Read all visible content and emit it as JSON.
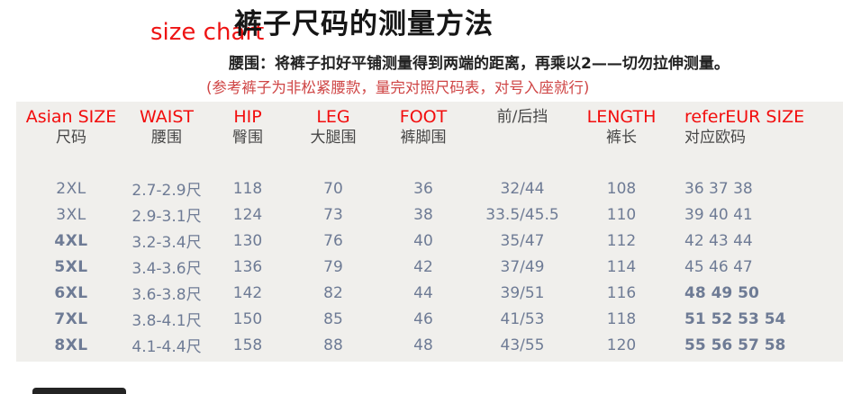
{
  "page": {
    "size_chart_label": "size chart",
    "title": "裤子尺码的测量方法",
    "instruction": "腰围：将裤子扣好平铺测量得到两端的距离，再乘以2——切勿拉伸测量。",
    "note": "(参考裤子为非松紧腰款，量完对照尺码表，对号入座就行)"
  },
  "colors": {
    "accent_red": "#f20d0d",
    "note_red": "#cf4545",
    "table_text": "#6e7b95",
    "panel_background": "#f0efec",
    "title_black": "#161616"
  },
  "table": {
    "columns": [
      {
        "en": "Asian SIZE",
        "cn": "尺码"
      },
      {
        "en": "WAIST",
        "cn": "腰围"
      },
      {
        "en": "HIP",
        "cn": "臀围"
      },
      {
        "en": "LEG",
        "cn": "大腿围"
      },
      {
        "en": "FOOT",
        "cn": "裤脚围"
      },
      {
        "en": "",
        "cn": "前/后挡"
      },
      {
        "en": "LENGTH",
        "cn": "裤长"
      },
      {
        "en": "referEUR SIZE",
        "cn": "对应欧码"
      }
    ],
    "rows": [
      {
        "cells": [
          "2XL",
          "2.7-2.9尺",
          "118",
          "70",
          "36",
          "32/44",
          "108",
          "36 37 38"
        ],
        "bold_size": false,
        "bold_eur": false
      },
      {
        "cells": [
          "3XL",
          "2.9-3.1尺",
          "124",
          "73",
          "38",
          "33.5/45.5",
          "110",
          "39 40 41"
        ],
        "bold_size": false,
        "bold_eur": false
      },
      {
        "cells": [
          "4XL",
          "3.2-3.4尺",
          "130",
          "76",
          "40",
          "35/47",
          "112",
          "42 43 44"
        ],
        "bold_size": true,
        "bold_eur": false
      },
      {
        "cells": [
          "5XL",
          "3.4-3.6尺",
          "136",
          "79",
          "42",
          "37/49",
          "114",
          "45 46 47"
        ],
        "bold_size": true,
        "bold_eur": false
      },
      {
        "cells": [
          "6XL",
          "3.6-3.8尺",
          "142",
          "82",
          "44",
          "39/51",
          "116",
          "48 49 50"
        ],
        "bold_size": true,
        "bold_eur": true
      },
      {
        "cells": [
          "7XL",
          "3.8-4.1尺",
          "150",
          "85",
          "46",
          "41/53",
          "118",
          "51 52 53 54"
        ],
        "bold_size": true,
        "bold_eur": true
      },
      {
        "cells": [
          "8XL",
          "4.1-4.4尺",
          "158",
          "88",
          "48",
          "43/55",
          "120",
          "55 56 57 58"
        ],
        "bold_size": true,
        "bold_eur": true
      }
    ]
  }
}
